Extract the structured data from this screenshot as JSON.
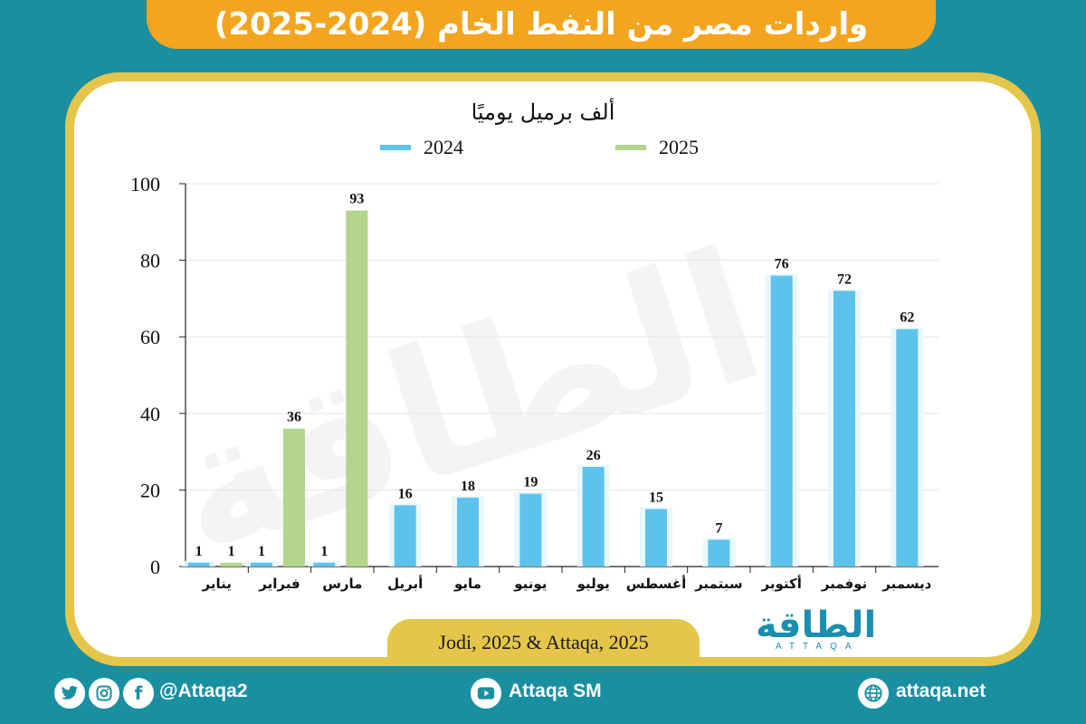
{
  "title": "واردات مصر من النفط الخام (2024-2025)",
  "colors": {
    "background": "#1a8fa0",
    "banner": "#f3a51f",
    "frame": "#e5c64b",
    "series_2024": "#5ec3ec",
    "series_2025": "#b3d58c"
  },
  "chart_data": {
    "type": "bar",
    "subtitle": "ألف برميل يوميًا",
    "categories": [
      "يناير",
      "فبراير",
      "مارس",
      "أبريل",
      "مايو",
      "يونيو",
      "يوليو",
      "أغسطس",
      "سبتمبر",
      "أكتوبر",
      "نوفمبر",
      "ديسمبر"
    ],
    "series": [
      {
        "name": "2024",
        "values": [
          1,
          1,
          1,
          16,
          18,
          19,
          26,
          15,
          7,
          76,
          72,
          62
        ]
      },
      {
        "name": "2025",
        "values": [
          1,
          36,
          93,
          null,
          null,
          null,
          null,
          null,
          null,
          null,
          null,
          null
        ]
      }
    ],
    "ylim": [
      0,
      100
    ],
    "yticks": [
      0,
      20,
      40,
      60,
      80,
      100
    ],
    "xlabel": "",
    "ylabel": "",
    "grid": true,
    "legend": "top-center"
  },
  "source": "Jodi, 2025 & Attaqa, 2025",
  "logo": {
    "text": "الطاقة",
    "sub": "ATTAQA"
  },
  "watermark": "الطاقة",
  "footer": {
    "twitter_icon": "twitter-icon",
    "instagram_icon": "instagram-icon",
    "facebook_icon": "facebook-icon",
    "handle": "@Attaqa2",
    "youtube_icon": "youtube-icon",
    "youtube": "Attaqa SM",
    "globe_icon": "globe-icon",
    "website": "attaqa.net"
  }
}
